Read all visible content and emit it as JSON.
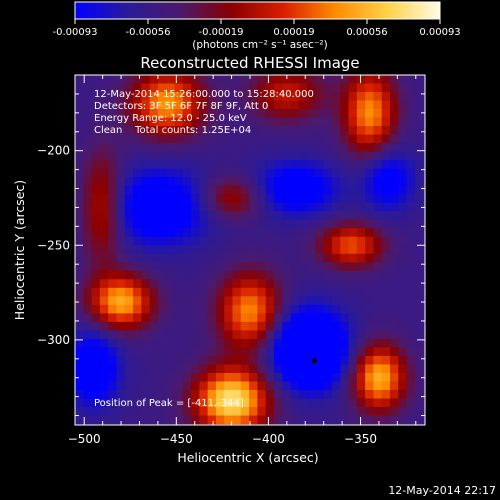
{
  "chart_data": {
    "type": "heatmap",
    "title": "Reconstructed RHESSI Image",
    "xlabel": "Heliocentric X (arcsec)",
    "ylabel": "Heliocentric Y (arcsec)",
    "xlim": [
      -505,
      -315
    ],
    "ylim": [
      -345,
      -160
    ],
    "xticks": [
      -500,
      -450,
      -400,
      -350
    ],
    "yticks": [
      -200,
      -250,
      -300
    ],
    "colorbar": {
      "min": -0.00093,
      "max": 0.00093,
      "ticks": [
        "-0.00093",
        "-0.00056",
        "-0.00019",
        "0.00019",
        "0.00056",
        "0.00093"
      ],
      "unit_label": "(photons cm⁻² s⁻¹ asec⁻²)",
      "colors": [
        "#0000ff",
        "#2a1a9a",
        "#4a1a6e",
        "#8a0000",
        "#d81e00",
        "#ff8c00",
        "#ffd24a",
        "#fffbe6"
      ]
    },
    "info_lines": [
      "12-May-2014 15:26:00.000 to 15:28:40.000",
      "Detectors: 3F 5F 6F 7F 8F 9F, Att 0",
      "Energy Range: 12.0 - 25.0 keV",
      "Clean    Total counts: 1.25E+04"
    ],
    "peak_label": "Position of Peak = [-411,-344]",
    "peak": {
      "x": -411,
      "y": -344
    },
    "minimum_marker": {
      "x": -375,
      "y": -311
    },
    "bright_sources": [
      {
        "x": -420,
        "y": -332,
        "amplitude": 1.0,
        "sx": 14,
        "sy": 12
      },
      {
        "x": -340,
        "y": -320,
        "amplitude": 0.82,
        "sx": 10,
        "sy": 12
      },
      {
        "x": -480,
        "y": -280,
        "amplitude": 0.8,
        "sx": 12,
        "sy": 10
      },
      {
        "x": -455,
        "y": -175,
        "amplitude": 0.75,
        "sx": 14,
        "sy": 12
      },
      {
        "x": -345,
        "y": -180,
        "amplitude": 0.72,
        "sx": 10,
        "sy": 16
      },
      {
        "x": -410,
        "y": -285,
        "amplitude": 0.72,
        "sx": 12,
        "sy": 14
      },
      {
        "x": -355,
        "y": -250,
        "amplitude": 0.6,
        "sx": 12,
        "sy": 8
      },
      {
        "x": -490,
        "y": -230,
        "amplitude": 0.5,
        "sx": 8,
        "sy": 20
      },
      {
        "x": -390,
        "y": -170,
        "amplitude": 0.45,
        "sx": 14,
        "sy": 10
      },
      {
        "x": -420,
        "y": -225,
        "amplitude": 0.4,
        "sx": 12,
        "sy": 8
      }
    ],
    "dark_regions": [
      {
        "x": -378,
        "y": -305,
        "amplitude": -0.9,
        "sx": 14,
        "sy": 14
      },
      {
        "x": -460,
        "y": -230,
        "amplitude": -0.5,
        "sx": 20,
        "sy": 14
      },
      {
        "x": -495,
        "y": -315,
        "amplitude": -0.5,
        "sx": 10,
        "sy": 14
      },
      {
        "x": -385,
        "y": -220,
        "amplitude": -0.45,
        "sx": 16,
        "sy": 10
      },
      {
        "x": -335,
        "y": -215,
        "amplitude": -0.4,
        "sx": 10,
        "sy": 12
      }
    ]
  },
  "timestamp": "12-May-2014 22:17"
}
